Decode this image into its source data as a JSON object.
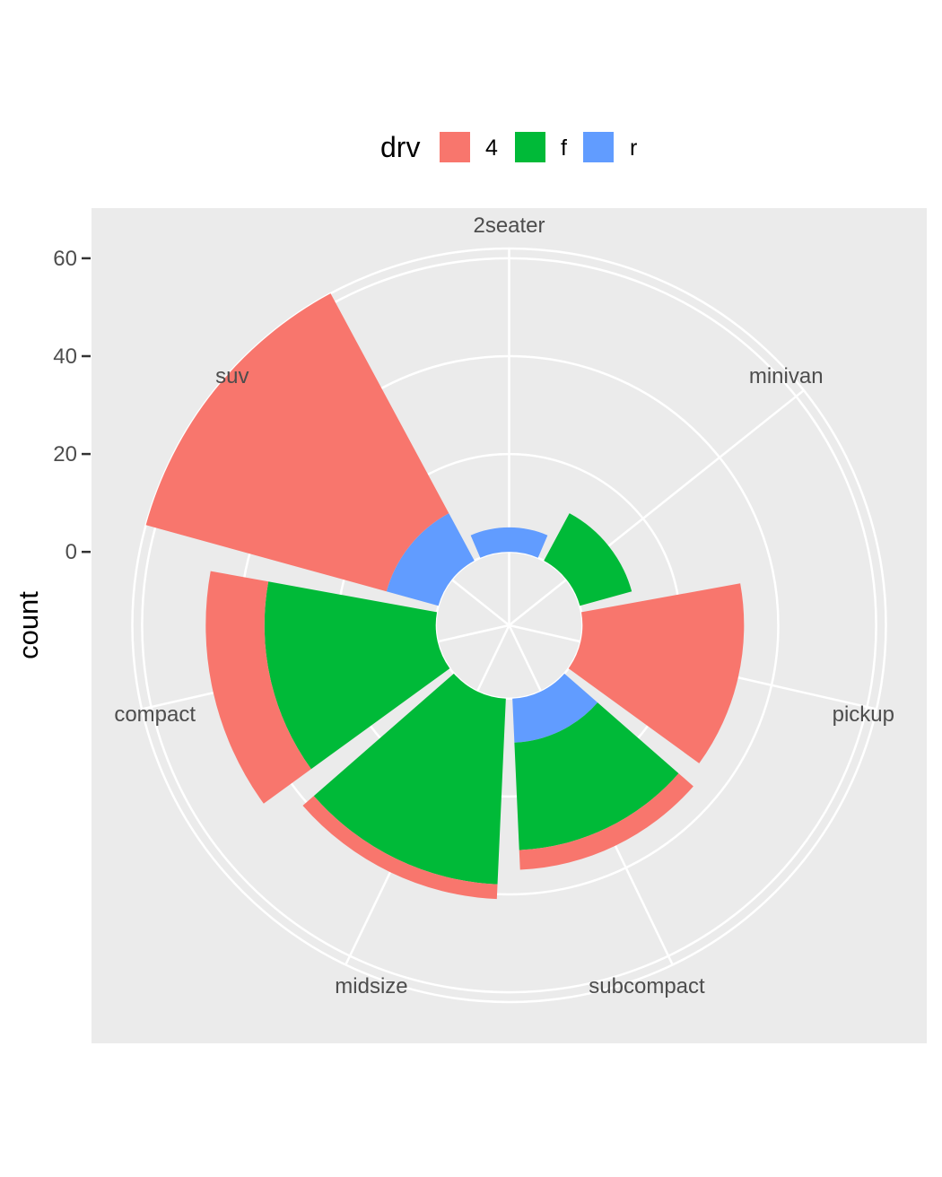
{
  "colors": {
    "panel_background": "#ebebeb",
    "grid": "#ffffff",
    "tick": "#333333",
    "4": "#f8766d",
    "f": "#00ba38",
    "r": "#619cff"
  },
  "chart_data": {
    "type": "bar",
    "coord": "polar",
    "position": "stack",
    "stack_order_from_center": [
      "r",
      "f",
      "4"
    ],
    "xlabel": "",
    "ylabel": "count",
    "ylim": [
      -15,
      62
    ],
    "y_ticks": [
      0,
      20,
      40,
      60
    ],
    "y_tick_labels": [
      "0",
      "20",
      "40",
      "60"
    ],
    "grid": true,
    "categories": [
      "2seater",
      "compact",
      "midsize",
      "minivan",
      "pickup",
      "subcompact",
      "suv"
    ],
    "category_order_clockwise_from_top": [
      "2seater",
      "minivan",
      "pickup",
      "subcompact",
      "midsize",
      "compact",
      "suv"
    ],
    "series": [
      {
        "name": "4",
        "values": [
          0,
          12,
          3,
          0,
          33,
          4,
          51
        ]
      },
      {
        "name": "f",
        "values": [
          0,
          35,
          38,
          11,
          0,
          22,
          0
        ]
      },
      {
        "name": "r",
        "values": [
          5,
          0,
          0,
          0,
          0,
          9,
          11
        ]
      }
    ],
    "legend": {
      "title": "drv",
      "position": "top",
      "entries": [
        "4",
        "f",
        "r"
      ]
    }
  }
}
